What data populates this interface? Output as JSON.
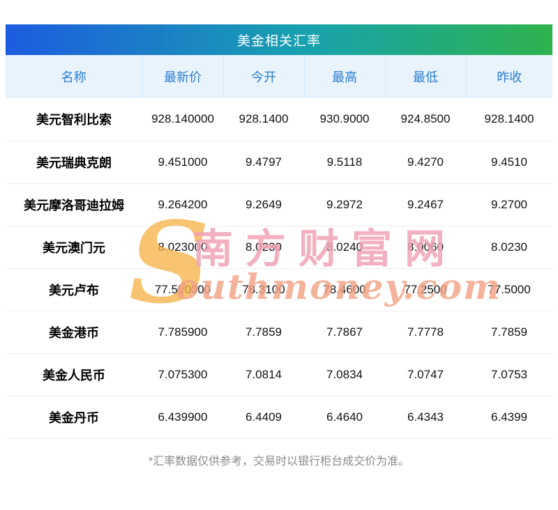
{
  "chart_data": {
    "type": "table",
    "title": "美金相关汇率",
    "columns": [
      "名称",
      "最新价",
      "今开",
      "最高",
      "最低",
      "昨收"
    ],
    "rows": [
      [
        "美元智利比索",
        "928.140000",
        "928.1400",
        "930.9000",
        "924.8500",
        "928.1400"
      ],
      [
        "美元瑞典克朗",
        "9.451000",
        "9.4797",
        "9.5118",
        "9.4270",
        "9.4510"
      ],
      [
        "美元摩洛哥迪拉姆",
        "9.264200",
        "9.2649",
        "9.2972",
        "9.2467",
        "9.2700"
      ],
      [
        "美元澳门元",
        "8.023000",
        "8.0230",
        "8.0240",
        "8.0060",
        "8.0230"
      ],
      [
        "美元卢布",
        "77.500000",
        "78.3100",
        "78.4600",
        "77.2500",
        "77.5000"
      ],
      [
        "美金港币",
        "7.785900",
        "7.7859",
        "7.7867",
        "7.7778",
        "7.7859"
      ],
      [
        "美金人民币",
        "7.075300",
        "7.0814",
        "7.0834",
        "7.0747",
        "7.0753"
      ],
      [
        "美金丹币",
        "6.439900",
        "6.4409",
        "6.4640",
        "6.4343",
        "6.4399"
      ]
    ]
  },
  "footer": "*汇率数据仅供参考，交易时以银行柜台成交价为准。",
  "watermark": {
    "s": "S",
    "cn": "南方财富网",
    "en": "outhmoney.com"
  },
  "colors": {
    "title_gradient_start": "#1d5ce0",
    "title_gradient_end": "#2eb34d",
    "header_bg": "#e9f3fc",
    "header_text": "#2a7dd2"
  }
}
